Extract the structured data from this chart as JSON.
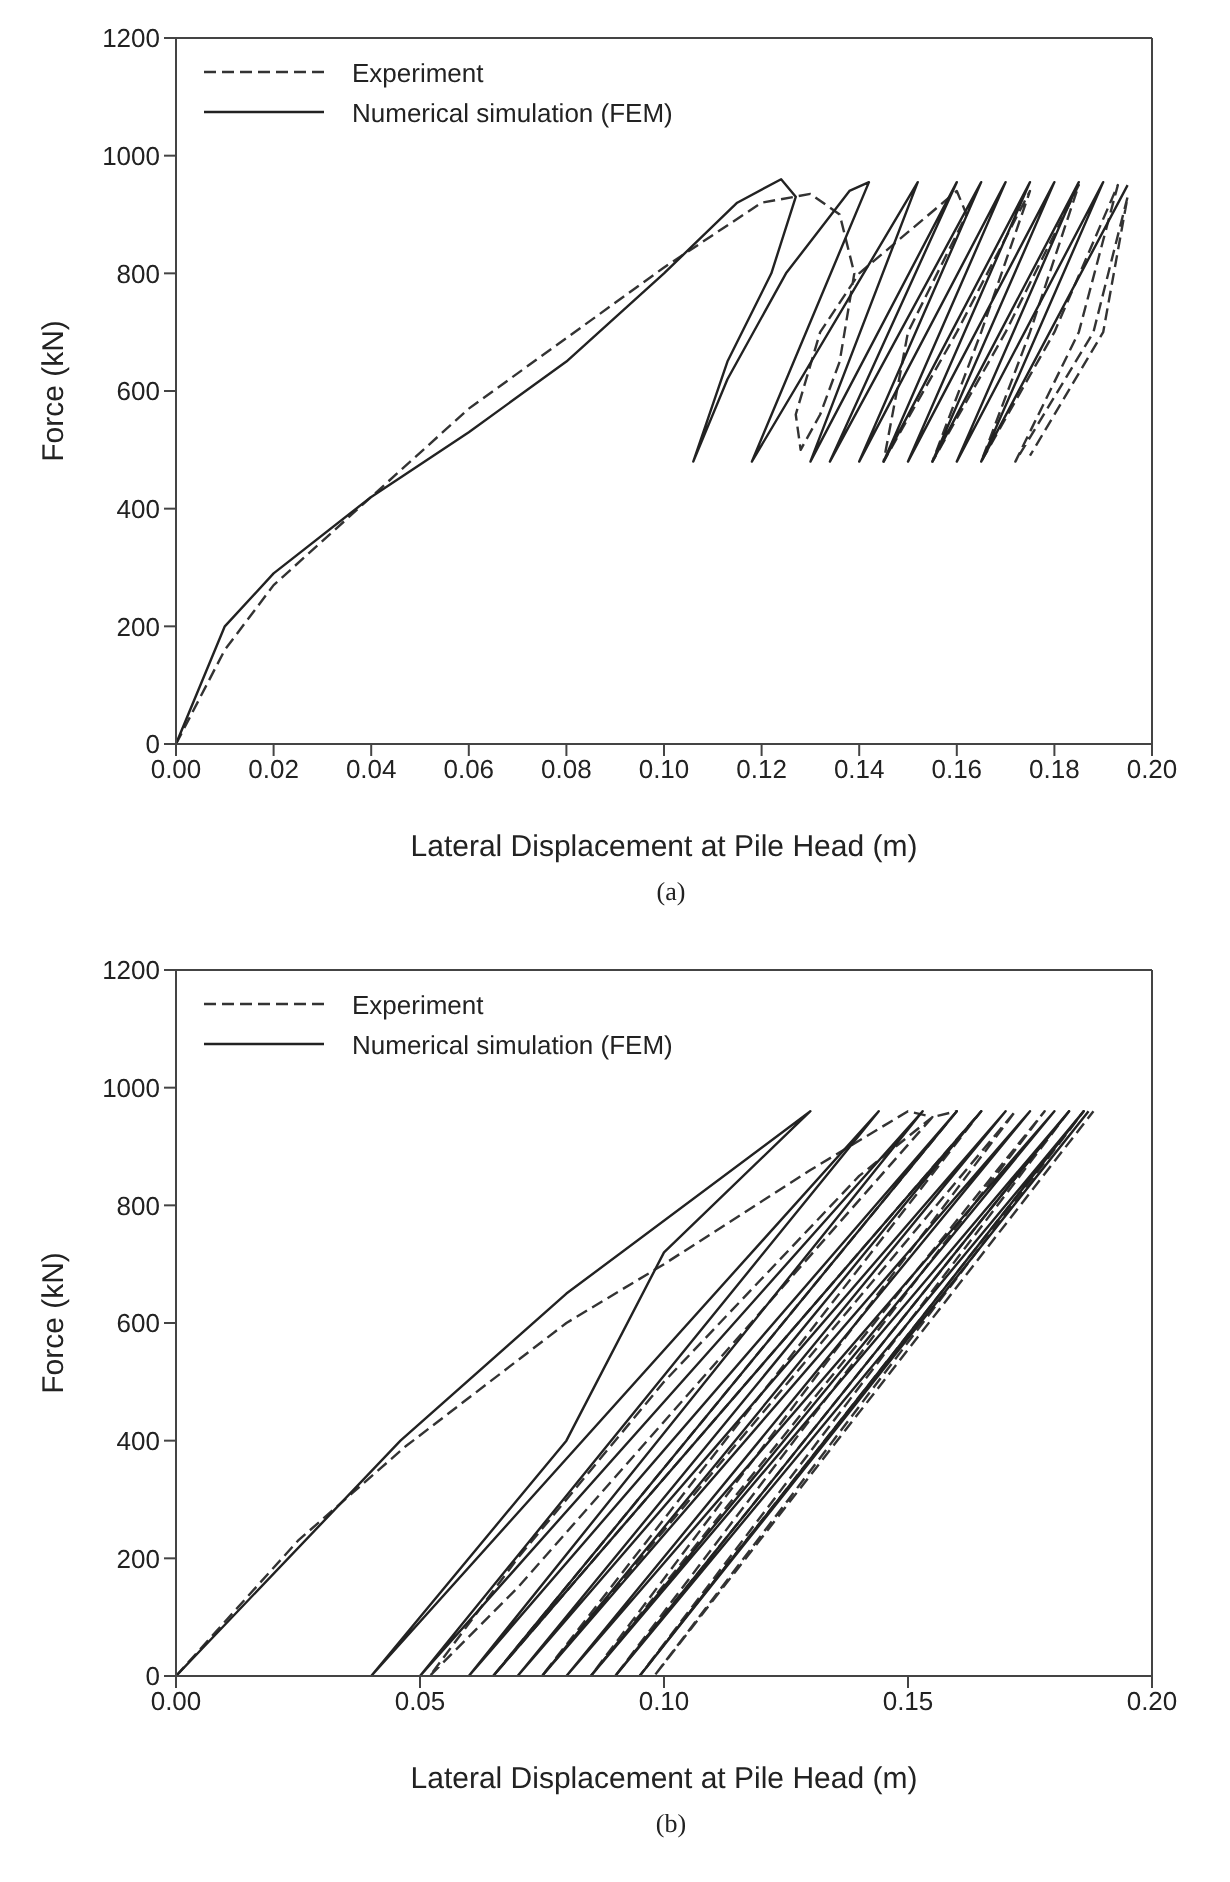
{
  "chart_data": [
    {
      "type": "line",
      "xlabel": "Lateral Displacement at Pile Head (m)",
      "ylabel": "Force (kN)",
      "annotations": [
        "(a)"
      ],
      "legend": "top left",
      "xlim": [
        0,
        0.2
      ],
      "ylim": [
        0,
        1200
      ],
      "xticks": [
        {
          "value": 0,
          "label": "0.00"
        },
        {
          "value": 0.02,
          "label": "0.02"
        },
        {
          "value": 0.04,
          "label": "0.04"
        },
        {
          "value": 0.06,
          "label": "0.06"
        },
        {
          "value": 0.08,
          "label": "0.08"
        },
        {
          "value": 0.1,
          "label": "0.10"
        },
        {
          "value": 0.12,
          "label": "0.12"
        },
        {
          "value": 0.14,
          "label": "0.14"
        },
        {
          "value": 0.16,
          "label": "0.16"
        },
        {
          "value": 0.18,
          "label": "0.18"
        },
        {
          "value": 0.2,
          "label": "0.20"
        }
      ],
      "yticks": [
        0,
        200,
        400,
        600,
        800,
        1000,
        1200
      ],
      "series": [
        {
          "name": "Experiment",
          "color": "#333333",
          "line_style": "dashed",
          "x": [
            0,
            0.01,
            0.02,
            0.04,
            0.06,
            0.08,
            0.1,
            0.12,
            0.13,
            0.136,
            0.139,
            0.136,
            0.132,
            0.128,
            0.127,
            0.132,
            0.14,
            0.16,
            0.162,
            0.15,
            0.145,
            0.16,
            0.175,
            0.165,
            0.155,
            0.17,
            0.185,
            0.175,
            0.165,
            0.18,
            0.193,
            0.185,
            0.172,
            0.188,
            0.195,
            0.19,
            0.175
          ],
          "values": [
            0,
            160,
            270,
            420,
            570,
            690,
            810,
            920,
            935,
            900,
            800,
            650,
            560,
            500,
            560,
            700,
            800,
            940,
            900,
            700,
            480,
            700,
            940,
            700,
            480,
            700,
            950,
            700,
            480,
            700,
            950,
            700,
            480,
            700,
            930,
            700,
            490
          ]
        },
        {
          "name": "Numerical simulation (FEM)",
          "color": "#222222",
          "line_style": "solid",
          "x": [
            0,
            0.01,
            0.02,
            0.04,
            0.06,
            0.08,
            0.1,
            0.115,
            0.124,
            0.127,
            0.122,
            0.113,
            0.106,
            0.113,
            0.125,
            0.138,
            0.142,
            0.118,
            0.152,
            0.13,
            0.16,
            0.134,
            0.165,
            0.14,
            0.17,
            0.145,
            0.175,
            0.15,
            0.18,
            0.155,
            0.185,
            0.16,
            0.19,
            0.165,
            0.195
          ],
          "values": [
            0,
            200,
            290,
            420,
            530,
            650,
            800,
            920,
            960,
            930,
            800,
            650,
            480,
            620,
            800,
            940,
            955,
            480,
            955,
            480,
            955,
            480,
            955,
            480,
            955,
            480,
            955,
            480,
            955,
            480,
            955,
            480,
            955,
            480,
            950
          ]
        }
      ]
    },
    {
      "type": "line",
      "xlabel": "Lateral Displacement at Pile Head (m)",
      "ylabel": "Force (kN)",
      "annotations": [
        "(b)"
      ],
      "legend": "top left",
      "xlim": [
        0,
        0.2
      ],
      "ylim": [
        0,
        1200
      ],
      "xticks": [
        {
          "value": 0,
          "label": "0.00"
        },
        {
          "value": 0.05,
          "label": "0.05"
        },
        {
          "value": 0.1,
          "label": "0.10"
        },
        {
          "value": 0.15,
          "label": "0.15"
        },
        {
          "value": 0.2,
          "label": "0.20"
        }
      ],
      "yticks": [
        0,
        200,
        400,
        600,
        800,
        1000,
        1200
      ],
      "series": [
        {
          "name": "Experiment",
          "color": "#333333",
          "line_style": "dashed",
          "x": [
            0,
            0.025,
            0.047,
            0.08,
            0.1,
            0.13,
            0.15,
            0.155,
            0.14,
            0.1,
            0.07,
            0.052,
            0.07,
            0.155,
            0.16,
            0.065,
            0.165,
            0.075,
            0.172,
            0.085,
            0.178,
            0.09,
            0.183,
            0.095,
            0.186,
            0.098,
            0.188
          ],
          "values": [
            0,
            230,
            390,
            600,
            700,
            860,
            960,
            950,
            850,
            500,
            200,
            0,
            150,
            950,
            960,
            0,
            960,
            0,
            960,
            0,
            960,
            0,
            960,
            0,
            960,
            0,
            960
          ]
        },
        {
          "name": "Numerical simulation (FEM)",
          "color": "#222222",
          "line_style": "solid",
          "x": [
            0,
            0.046,
            0.08,
            0.13,
            0.1,
            0.08,
            0.04,
            0.144,
            0.05,
            0.153,
            0.06,
            0.16,
            0.065,
            0.165,
            0.07,
            0.17,
            0.075,
            0.175,
            0.08,
            0.18,
            0.085,
            0.183,
            0.09,
            0.186,
            0.095,
            0.187
          ],
          "values": [
            0,
            400,
            650,
            960,
            720,
            400,
            0,
            960,
            0,
            960,
            0,
            960,
            0,
            960,
            0,
            960,
            0,
            960,
            0,
            960,
            0,
            960,
            0,
            960,
            0,
            960
          ]
        }
      ]
    }
  ]
}
